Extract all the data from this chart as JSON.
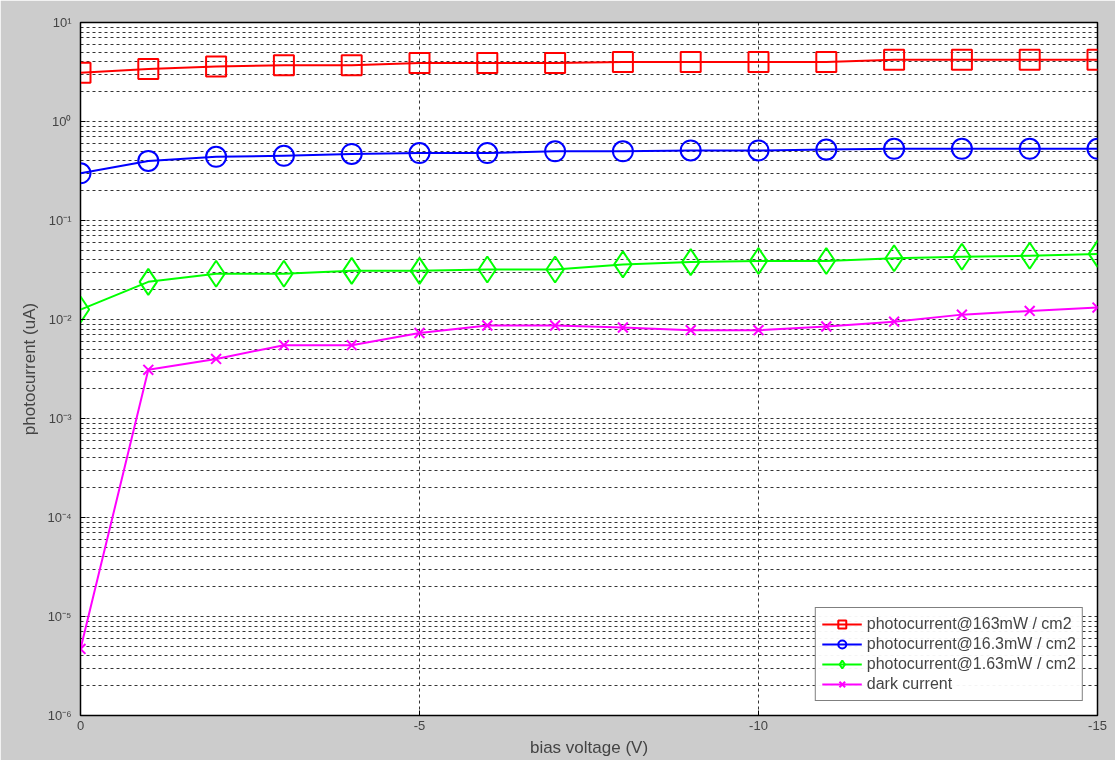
{
  "chart_data": {
    "type": "line",
    "xlabel": "bias voltage (V)",
    "ylabel": "photocurrent (uA)",
    "x": [
      0,
      -1,
      -2,
      -3,
      -4,
      -5,
      -6,
      -7,
      -8,
      -9,
      -10,
      -11,
      -12,
      -13,
      -14,
      -15
    ],
    "series": [
      {
        "name": "photocurrent@163mW / cm2",
        "color": "#ff0000",
        "marker": "square",
        "values": [
          3.1,
          3.4,
          3.6,
          3.7,
          3.7,
          3.9,
          3.9,
          3.9,
          4.0,
          4.0,
          4.0,
          4.0,
          4.2,
          4.2,
          4.2,
          4.2
        ]
      },
      {
        "name": "photocurrent@16.3mW / cm2",
        "color": "#0000ff",
        "marker": "circle",
        "values": [
          0.3,
          0.4,
          0.44,
          0.45,
          0.47,
          0.48,
          0.48,
          0.5,
          0.5,
          0.51,
          0.51,
          0.52,
          0.53,
          0.53,
          0.53,
          0.53
        ]
      },
      {
        "name": "photocurrent@1.63mW / cm2",
        "color": "#00ff00",
        "marker": "diamond",
        "values": [
          0.0126,
          0.024,
          0.029,
          0.029,
          0.031,
          0.031,
          0.032,
          0.032,
          0.036,
          0.038,
          0.039,
          0.039,
          0.0415,
          0.043,
          0.044,
          0.046
        ]
      },
      {
        "name": "dark current",
        "color": "#ff00ff",
        "marker": "cross",
        "values": [
          4.7e-06,
          0.0031,
          0.004,
          0.0055,
          0.0055,
          0.0073,
          0.0087,
          0.0087,
          0.0083,
          0.0078,
          0.0078,
          0.0085,
          0.0095,
          0.0112,
          0.0122,
          0.0132
        ]
      }
    ],
    "xlim": [
      0,
      -15
    ],
    "xticks": [
      0,
      -5,
      -10,
      -15
    ],
    "ylim": [
      1e-06,
      10
    ],
    "yticks": [
      {
        "value": 1e-06,
        "label": "10⁻⁶"
      },
      {
        "value": 1e-05,
        "label": "10⁻⁵"
      },
      {
        "value": 0.0001,
        "label": "10⁻⁴"
      },
      {
        "value": 0.001,
        "label": "10⁻³"
      },
      {
        "value": 0.01,
        "label": "10⁻²"
      },
      {
        "value": 0.1,
        "label": "10⁻¹"
      },
      {
        "value": 1,
        "label": "10⁰"
      },
      {
        "value": 10,
        "label": "10¹"
      }
    ],
    "log": "y",
    "grid": true,
    "line_style": "solid",
    "legend": "bottom right"
  }
}
